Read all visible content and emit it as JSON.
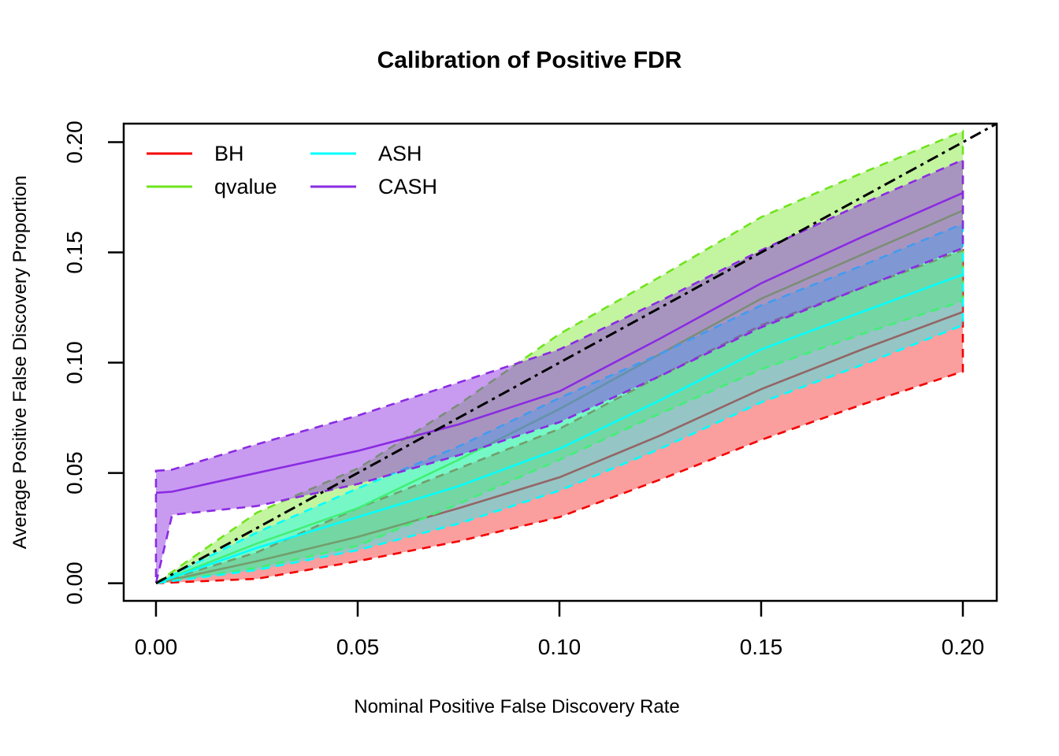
{
  "colors": {
    "background": "#FFFFFF",
    "foreground": "#000000",
    "bh": "#F40000",
    "qvalue": "#6FE41C",
    "ash": "#00FFFF",
    "cash": "#8A2BE2"
  },
  "chart_data": {
    "type": "line",
    "subtype": "ribbon-bands-with-mean-lines",
    "title": "Calibration of Positive FDR",
    "xlabel": "Nominal Positive False Discovery Rate",
    "ylabel": "Average Positive False Discovery Proportion",
    "xlim": [
      -0.008,
      0.2084
    ],
    "ylim": [
      -0.008,
      0.2084
    ],
    "grid": false,
    "xticks": {
      "values": [
        0,
        0.05,
        0.1,
        0.15,
        0.2
      ],
      "labels": [
        "0.00",
        "0.05",
        "0.10",
        "0.15",
        "0.20"
      ]
    },
    "yticks": {
      "values": [
        0,
        0.05,
        0.1,
        0.15,
        0.2
      ],
      "labels": [
        "0.00",
        "0.05",
        "0.10",
        "0.15",
        "0.20"
      ]
    },
    "reference_line": {
      "kind": "identity y=x",
      "style": "dotdash",
      "color": "#000000",
      "from": 0,
      "to": 0.2084
    },
    "legend": {
      "position": "top-left-inside",
      "items": [
        {
          "label": "BH",
          "series": "BH",
          "color": "#F40000",
          "col": 0,
          "row": 0
        },
        {
          "label": "qvalue",
          "series": "qvalue",
          "color": "#6FE41C",
          "col": 0,
          "row": 1
        },
        {
          "label": "ASH",
          "series": "ASH",
          "color": "#00FFFF",
          "col": 1,
          "row": 0
        },
        {
          "label": "CASH",
          "series": "CASH",
          "color": "#8A2BE2",
          "col": 1,
          "row": 1
        }
      ]
    },
    "series": [
      {
        "name": "BH",
        "color": "#F40000",
        "fill_opacity": 0.38,
        "x": [
          0,
          0.025,
          0.05,
          0.075,
          0.1,
          0.125,
          0.15,
          0.175,
          0.2
        ],
        "band_low": [
          0,
          0.002,
          0.01,
          0.019,
          0.03,
          0.047,
          0.065,
          0.081,
          0.096
        ],
        "mean": [
          0,
          0.01,
          0.021,
          0.034,
          0.048,
          0.067,
          0.088,
          0.106,
          0.123
        ],
        "band_high": [
          0,
          0.014,
          0.034,
          0.052,
          0.07,
          0.094,
          0.117,
          0.134,
          0.151
        ]
      },
      {
        "name": "qvalue",
        "color": "#6FE41C",
        "fill_opacity": 0.42,
        "x": [
          0,
          0.025,
          0.05,
          0.075,
          0.1,
          0.125,
          0.15,
          0.175,
          0.2
        ],
        "band_low": [
          0,
          0.007,
          0.017,
          0.036,
          0.056,
          0.077,
          0.097,
          0.113,
          0.128
        ],
        "mean": [
          0,
          0.018,
          0.034,
          0.056,
          0.079,
          0.104,
          0.129,
          0.149,
          0.169
        ],
        "band_high": [
          0,
          0.032,
          0.052,
          0.081,
          0.113,
          0.139,
          0.166,
          0.186,
          0.205
        ]
      },
      {
        "name": "ASH",
        "color": "#00FFFF",
        "fill_opacity": 0.4,
        "x": [
          0,
          0.025,
          0.05,
          0.075,
          0.1,
          0.125,
          0.15,
          0.175,
          0.2
        ],
        "band_low": [
          0,
          0.006,
          0.015,
          0.027,
          0.042,
          0.061,
          0.082,
          0.099,
          0.117
        ],
        "mean": [
          0,
          0.016,
          0.03,
          0.044,
          0.061,
          0.083,
          0.106,
          0.123,
          0.14
        ],
        "band_high": [
          0,
          0.023,
          0.043,
          0.062,
          0.084,
          0.104,
          0.126,
          0.144,
          0.163
        ]
      },
      {
        "name": "CASH",
        "color": "#8A2BE2",
        "fill_opacity": 0.47,
        "x": [
          0,
          0.004,
          0.025,
          0.05,
          0.075,
          0.1,
          0.125,
          0.15,
          0.175,
          0.2
        ],
        "band_low": [
          0,
          0.031,
          0.035,
          0.045,
          0.058,
          0.073,
          0.094,
          0.116,
          0.134,
          0.152
        ],
        "mean": [
          0.041,
          0.0415,
          0.05,
          0.06,
          0.072,
          0.087,
          0.111,
          0.136,
          0.157,
          0.177
        ],
        "band_high": [
          0.051,
          0.0515,
          0.063,
          0.076,
          0.091,
          0.106,
          0.128,
          0.151,
          0.172,
          0.192
        ]
      }
    ]
  }
}
